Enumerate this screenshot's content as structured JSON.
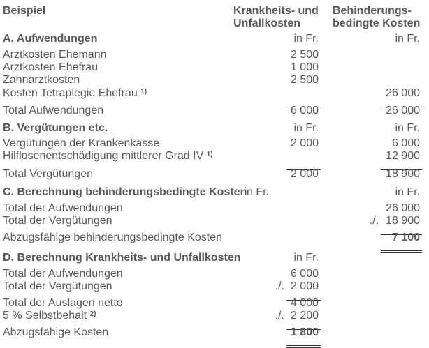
{
  "header": {
    "label": "Beispiel",
    "col1": [
      "Krankheits- und",
      "Unfallkosten"
    ],
    "col2": [
      "Behinderungs-",
      "bedingte Kosten"
    ]
  },
  "rows": [
    {
      "kind": "head",
      "label": "A. Aufwendungen",
      "c1": "in Fr.",
      "c2": "in Fr."
    },
    {
      "kind": "item",
      "label": "Arztkosten Ehemann",
      "c1": "2 500"
    },
    {
      "kind": "item",
      "label": "Arztkosten Ehefrau",
      "c1": "1 000"
    },
    {
      "kind": "item",
      "label": "Zahnarztkosten",
      "c1": "2 500"
    },
    {
      "kind": "item",
      "label": "Kosten Tetraplegie Ehefrau",
      "sup": "1)",
      "c1": "",
      "c2": "26 000",
      "c1_line": "single",
      "c2_line": "single"
    },
    {
      "kind": "total",
      "label": "Total Aufwendungen",
      "c1": "6 000",
      "c2": "26 000"
    },
    {
      "kind": "head",
      "label": "B. Vergütungen etc.",
      "c1": "in Fr.",
      "c2": "in Fr."
    },
    {
      "kind": "item",
      "label": "Vergütungen der Krankenkasse",
      "c1": "2 000",
      "c2": "6 000"
    },
    {
      "kind": "item",
      "label": "Hilflosenentschädigung mittlerer Grad IV",
      "sup": "1)",
      "c1": "",
      "c2": "12 900",
      "c1_line": "single",
      "c2_line": "single"
    },
    {
      "kind": "total",
      "label": "Total Vergütungen",
      "c1": "2 000",
      "c2": "18 900"
    },
    {
      "kind": "head",
      "label": "C. Berechnung behinderungsbedingte Kosten",
      "c1": "in Fr.",
      "c2": "in Fr."
    },
    {
      "kind": "item",
      "label": "Total der Aufwendungen",
      "c2": "26 000"
    },
    {
      "kind": "item",
      "label": "Total der Vergütungen",
      "c2": "18 900",
      "c2_prefix": "./.",
      "c2_line": "single"
    },
    {
      "kind": "result",
      "label": "Abzugsfähige behinderungsbedingte Kosten",
      "c2": "7 100",
      "c2_line": "double"
    },
    {
      "kind": "head",
      "label": "D. Berechnung Krankheits- und Unfallkosten",
      "c1": "in Fr."
    },
    {
      "kind": "item",
      "label": "Total der Aufwendungen",
      "c1": "6 000"
    },
    {
      "kind": "item",
      "label": "Total der Vergütungen",
      "c1": "2 000",
      "c1_prefix": "./.",
      "c1_line": "single"
    },
    {
      "kind": "item",
      "label": "Total der Auslagen netto",
      "c1": "4 000"
    },
    {
      "kind": "item",
      "label": "5 % Selbstbehalt",
      "sup": "2)",
      "c1": "2 200",
      "c1_prefix": "./.",
      "c1_line": "single"
    },
    {
      "kind": "result",
      "label": "Abzugsfähige Kosten",
      "c1": "1 800",
      "c1_line": "double"
    }
  ]
}
